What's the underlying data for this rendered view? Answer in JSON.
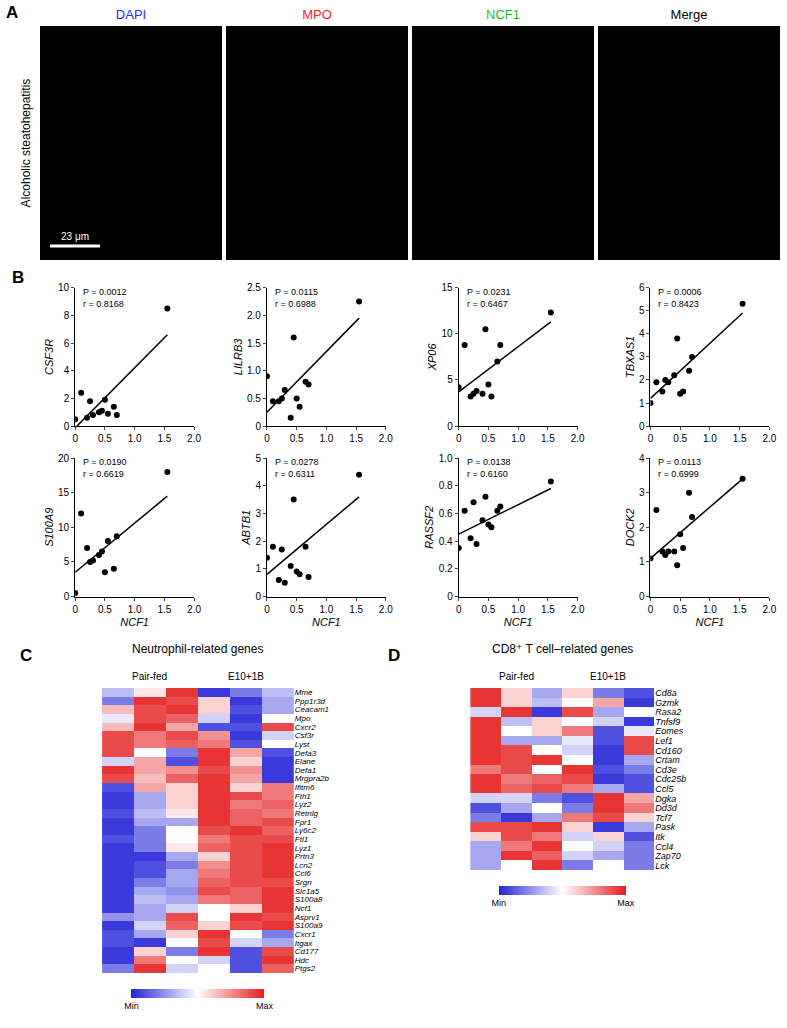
{
  "chart_data": [
    {
      "type": "image",
      "panel": "A",
      "row_label": "Alcoholic steatohepatitis",
      "scale_bar": "23 μm",
      "channels": [
        {
          "name": "DAPI",
          "color": "#2a2aff"
        },
        {
          "name": "MPO",
          "color": "#ff1a1a"
        },
        {
          "name": "NCF1",
          "color": "#1fb81f"
        },
        {
          "name": "Merge",
          "color": "#000000"
        }
      ]
    },
    {
      "type": "scatter",
      "panel": "B",
      "ylabel": "CSF3R",
      "color": "#000000",
      "x": [
        0,
        0.1,
        0.2,
        0.25,
        0.3,
        0.4,
        0.45,
        0.5,
        0.55,
        0.65,
        0.7,
        1.55
      ],
      "values": [
        0.5,
        2.4,
        0.6,
        1.8,
        0.8,
        1.0,
        1.1,
        1.9,
        0.9,
        1.4,
        0.8,
        8.5
      ],
      "fit": {
        "x": [
          0.03,
          1.55
        ],
        "y": [
          0,
          6.6
        ]
      },
      "xlim": [
        0,
        2
      ],
      "xticks": [
        0,
        0.5,
        {
          "value": 1,
          "label": "1.0"
        },
        1.5,
        {
          "value": 2,
          "label": "2.0"
        }
      ],
      "ylim": [
        0,
        10
      ],
      "yticks": [
        0,
        2,
        4,
        6,
        8,
        10
      ],
      "annotations": [
        "P = 0.0012",
        "r = 0.8168"
      ]
    },
    {
      "type": "scatter",
      "ylabel": "LILRB3",
      "color": "#000000",
      "x": [
        0,
        0.1,
        0.2,
        0.25,
        0.3,
        0.4,
        0.45,
        0.5,
        0.55,
        0.65,
        0.7,
        1.55
      ],
      "values": [
        0.9,
        0.45,
        0.45,
        0.5,
        0.65,
        0.15,
        1.6,
        0.5,
        0.35,
        0.8,
        0.75,
        2.25
      ],
      "fit": {
        "x": [
          0,
          1.55
        ],
        "y": [
          0.25,
          1.95
        ]
      },
      "xlim": [
        0,
        2
      ],
      "xticks": [
        0,
        0.5,
        {
          "value": 1,
          "label": "1.0"
        },
        1.5,
        {
          "value": 2,
          "label": "2.0"
        }
      ],
      "ylim": [
        0,
        2.5
      ],
      "yticks": [
        0,
        0.5,
        {
          "value": 1,
          "label": "1.0"
        },
        1.5,
        {
          "value": 2,
          "label": "2.0"
        },
        2.5
      ],
      "annotations": [
        "P = 0.0115",
        "r = 0.6988"
      ]
    },
    {
      "type": "scatter",
      "ylabel": "XP06",
      "color": "#000000",
      "x": [
        0,
        0.1,
        0.2,
        0.25,
        0.3,
        0.4,
        0.45,
        0.5,
        0.55,
        0.65,
        0.7,
        1.55
      ],
      "values": [
        4.2,
        8.8,
        3.2,
        3.5,
        3.8,
        3.5,
        10.5,
        4.5,
        3.2,
        7.0,
        8.8,
        12.3
      ],
      "fit": {
        "x": [
          0,
          1.55
        ],
        "y": [
          3.7,
          11.3
        ]
      },
      "xlim": [
        0,
        2
      ],
      "xticks": [
        0,
        0.5,
        {
          "value": 1,
          "label": "1.0"
        },
        1.5,
        {
          "value": 2,
          "label": "2.0"
        }
      ],
      "ylim": [
        0,
        15
      ],
      "yticks": [
        0,
        5,
        10,
        15
      ],
      "annotations": [
        "P = 0.0231",
        "r = 0.6467"
      ]
    },
    {
      "type": "scatter",
      "ylabel": "TBXAS1",
      "color": "#000000",
      "x": [
        0,
        0.1,
        0.2,
        0.25,
        0.3,
        0.4,
        0.45,
        0.5,
        0.55,
        0.65,
        0.7,
        1.55
      ],
      "values": [
        1.0,
        1.9,
        1.5,
        2.0,
        1.9,
        2.2,
        3.8,
        1.4,
        1.5,
        2.4,
        3.0,
        5.3
      ],
      "fit": {
        "x": [
          0,
          1.55
        ],
        "y": [
          1.2,
          4.9
        ]
      },
      "xlim": [
        0,
        2
      ],
      "xticks": [
        0,
        0.5,
        {
          "value": 1,
          "label": "1.0"
        },
        1.5,
        {
          "value": 2,
          "label": "2.0"
        }
      ],
      "ylim": [
        0,
        6
      ],
      "yticks": [
        0,
        1,
        2,
        3,
        4,
        5,
        6
      ],
      "annotations": [
        "P = 0.0006",
        "r = 0.8423"
      ]
    },
    {
      "type": "scatter",
      "ylabel": "S100A9",
      "xlabel": "NCF1",
      "color": "#000000",
      "x": [
        0,
        0.1,
        0.2,
        0.25,
        0.3,
        0.4,
        0.45,
        0.5,
        0.55,
        0.65,
        0.7,
        1.55
      ],
      "values": [
        0.5,
        12,
        7,
        5,
        5.2,
        6,
        6.5,
        3.5,
        8,
        4,
        8.7,
        18
      ],
      "fit": {
        "x": [
          0,
          1.55
        ],
        "y": [
          3.5,
          14.5
        ]
      },
      "xlim": [
        0,
        2
      ],
      "xticks": [
        0,
        0.5,
        {
          "value": 1,
          "label": "1.0"
        },
        1.5,
        {
          "value": 2,
          "label": "2.0"
        }
      ],
      "ylim": [
        0,
        20
      ],
      "yticks": [
        0,
        5,
        10,
        15,
        20
      ],
      "annotations": [
        "P = 0.0190",
        "r = 0.6619"
      ]
    },
    {
      "type": "scatter",
      "ylabel": "ABTB1",
      "xlabel": "NCF1",
      "color": "#000000",
      "x": [
        0,
        0.1,
        0.2,
        0.25,
        0.3,
        0.4,
        0.45,
        0.5,
        0.55,
        0.65,
        0.7,
        1.55
      ],
      "values": [
        1.4,
        1.8,
        0.6,
        1.7,
        0.5,
        1.1,
        3.5,
        0.9,
        0.8,
        1.8,
        0.7,
        4.4
      ],
      "fit": {
        "x": [
          0,
          1.55
        ],
        "y": [
          0.8,
          3.6
        ]
      },
      "xlim": [
        0,
        2
      ],
      "xticks": [
        0,
        0.5,
        {
          "value": 1,
          "label": "1.0"
        },
        1.5,
        {
          "value": 2,
          "label": "2.0"
        }
      ],
      "ylim": [
        0,
        5
      ],
      "yticks": [
        0,
        1,
        2,
        3,
        4,
        5
      ],
      "annotations": [
        "P = 0.0278",
        "r = 0.6311"
      ]
    },
    {
      "type": "scatter",
      "ylabel": "RASSF2",
      "xlabel": "NCF1",
      "color": "#000000",
      "x": [
        0,
        0.1,
        0.2,
        0.25,
        0.3,
        0.4,
        0.45,
        0.5,
        0.55,
        0.65,
        0.7,
        1.55
      ],
      "values": [
        0.35,
        0.62,
        0.42,
        0.68,
        0.38,
        0.55,
        0.72,
        0.52,
        0.5,
        0.62,
        0.65,
        0.83
      ],
      "fit": {
        "x": [
          0,
          1.55
        ],
        "y": [
          0.45,
          0.78
        ]
      },
      "xlim": [
        0,
        2
      ],
      "xticks": [
        0,
        0.5,
        {
          "value": 1,
          "label": "1.0"
        },
        1.5,
        {
          "value": 2,
          "label": "2.0"
        }
      ],
      "ylim": [
        0,
        1
      ],
      "yticks": [
        0,
        0.2,
        0.4,
        0.6,
        0.8,
        {
          "value": 1,
          "label": "1.0"
        }
      ],
      "annotations": [
        "P = 0.0138",
        "r = 0.6160"
      ]
    },
    {
      "type": "scatter",
      "ylabel": "DOCK2",
      "xlabel": "NCF1",
      "color": "#000000",
      "x": [
        0,
        0.1,
        0.2,
        0.25,
        0.3,
        0.4,
        0.45,
        0.5,
        0.55,
        0.65,
        0.7,
        1.55
      ],
      "values": [
        1.1,
        2.5,
        1.3,
        1.2,
        1.3,
        1.3,
        0.9,
        1.8,
        1.4,
        3.0,
        2.3,
        3.4
      ],
      "fit": {
        "x": [
          0,
          1.55
        ],
        "y": [
          1.1,
          3.4
        ]
      },
      "xlim": [
        0,
        2
      ],
      "xticks": [
        0,
        0.5,
        {
          "value": 1,
          "label": "1.0"
        },
        1.5,
        {
          "value": 2,
          "label": "2.0"
        }
      ],
      "ylim": [
        0,
        4
      ],
      "yticks": [
        0,
        1,
        2,
        3,
        4
      ],
      "annotations": [
        "P = 0.0113",
        "r = 0.6999"
      ]
    },
    {
      "type": "heatmap",
      "panel": "C",
      "title": "Neutrophil-related genes",
      "tick_labels": "y",
      "column_groups": [
        {
          "label": "Pair-fed",
          "columns": 3
        },
        {
          "label": "E10+1B",
          "columns": 3
        }
      ],
      "colors": [
        "#2424d8",
        "#ffffff",
        "#e41e1e"
      ],
      "zlim": [
        0,
        1
      ],
      "zticks": [
        {
          "value": 0,
          "label": "Min"
        },
        {
          "value": 1,
          "label": "Max"
        }
      ],
      "rows": [
        "Mme",
        "Ppp1r3d",
        "Ceacam1",
        "Mpo",
        "Cxcr2",
        "Csf3r",
        "Lyst",
        "Defa3",
        "Elane",
        "Defa1",
        "Mrgpra2b",
        "Ifitm6",
        "Fth1",
        "Lyz2",
        "Retnlg",
        "Fpr1",
        "Ly6c2",
        "Ftl1",
        "Lyz1",
        "Prtn3",
        "Lcn2",
        "Ccl6",
        "Srgn",
        "Slc1a5",
        "S100a8",
        "Ncf1",
        "Asprv1",
        "S100a9",
        "Cxcr1",
        "Itgax",
        "Cd177",
        "Hdc",
        "Ptgs2"
      ],
      "cells": [
        [
          0.35,
          0.55,
          0.95,
          0.05,
          0.2,
          0.35
        ],
        [
          0.2,
          0.95,
          0.9,
          0.6,
          0.05,
          0.3
        ],
        [
          0.65,
          0.9,
          0.95,
          0.6,
          0.1,
          0.3
        ],
        [
          0.45,
          0.9,
          0.85,
          0.4,
          0.05,
          0.5
        ],
        [
          0.65,
          0.95,
          0.7,
          0.1,
          0.1,
          0.9
        ],
        [
          0.9,
          0.8,
          0.9,
          0.75,
          0.05,
          0.4
        ],
        [
          0.9,
          0.8,
          0.85,
          0.8,
          0.1,
          0.5
        ],
        [
          0.9,
          0.5,
          0.2,
          0.95,
          0.7,
          0.1
        ],
        [
          0.4,
          0.7,
          0.1,
          0.95,
          0.6,
          0.05
        ],
        [
          0.95,
          0.7,
          0.75,
          0.9,
          0.75,
          0.05
        ],
        [
          0.9,
          0.65,
          0.85,
          0.95,
          0.7,
          0.05
        ],
        [
          0.1,
          0.7,
          0.6,
          0.95,
          0.6,
          0.8
        ],
        [
          0.05,
          0.3,
          0.6,
          0.95,
          0.9,
          0.8
        ],
        [
          0.05,
          0.3,
          0.6,
          0.95,
          0.8,
          0.85
        ],
        [
          0.1,
          0.35,
          0.55,
          0.95,
          0.85,
          0.8
        ],
        [
          0.05,
          0.3,
          0.3,
          0.95,
          0.85,
          0.9
        ],
        [
          0.05,
          0.2,
          0.5,
          0.9,
          0.95,
          0.85
        ],
        [
          0.1,
          0.2,
          0.5,
          0.8,
          0.9,
          0.9
        ],
        [
          0.05,
          0.2,
          0.55,
          0.85,
          0.9,
          0.95
        ],
        [
          0.05,
          0.05,
          0.3,
          0.6,
          0.9,
          0.95
        ],
        [
          0.05,
          0.1,
          0.2,
          0.75,
          0.9,
          0.95
        ],
        [
          0.05,
          0.1,
          0.3,
          0.8,
          0.9,
          0.95
        ],
        [
          0.05,
          0.2,
          0.3,
          0.85,
          0.9,
          0.9
        ],
        [
          0.05,
          0.3,
          0.25,
          0.9,
          0.85,
          0.95
        ],
        [
          0.05,
          0.35,
          0.3,
          0.8,
          0.85,
          0.95
        ],
        [
          0.05,
          0.3,
          0.4,
          0.5,
          0.6,
          0.95
        ],
        [
          0.25,
          0.3,
          0.9,
          0.5,
          0.95,
          0.9
        ],
        [
          0.05,
          0.4,
          0.85,
          0.6,
          0.9,
          0.95
        ],
        [
          0.1,
          0.3,
          0.6,
          0.95,
          0.5,
          0.2
        ],
        [
          0.1,
          0.05,
          0.5,
          0.9,
          0.4,
          0.3
        ],
        [
          0.05,
          0.6,
          0.2,
          0.95,
          0.1,
          0.9
        ],
        [
          0.05,
          0.8,
          0.5,
          0.4,
          0.1,
          0.95
        ],
        [
          0.2,
          0.95,
          0.4,
          0.5,
          0.1,
          0.85
        ]
      ]
    },
    {
      "type": "heatmap",
      "panel": "D",
      "title": "CD8⁺ T cell–related genes",
      "tick_labels": "y",
      "column_groups": [
        {
          "label": "Pair-fed",
          "columns": 3
        },
        {
          "label": "E10+1B",
          "columns": 3
        }
      ],
      "colors": [
        "#2424d8",
        "#ffffff",
        "#e41e1e"
      ],
      "zlim": [
        0,
        1
      ],
      "zticks": [
        {
          "value": 0,
          "label": "Min"
        },
        {
          "value": 1,
          "label": "Max"
        }
      ],
      "rows": [
        "Cd8a",
        "Gzmk",
        "Rasa2",
        "Tnfsf9",
        "Eomes",
        "Lef1",
        "Cd160",
        "Crtam",
        "Cd3e",
        "Cdc25b",
        "Ccl5",
        "Dgka",
        "Dd3d",
        "Tcf7",
        "Pask",
        "Itk",
        "Ccl4",
        "Zap70",
        "Lck"
      ],
      "cells": [
        [
          0.95,
          0.6,
          0.3,
          0.6,
          0.2,
          0.1
        ],
        [
          0.95,
          0.6,
          0.35,
          0.5,
          0.7,
          0.05
        ],
        [
          0.4,
          0.95,
          0.05,
          0.9,
          0.3,
          0.5
        ],
        [
          0.95,
          0.35,
          0.6,
          0.5,
          0.4,
          0.05
        ],
        [
          0.95,
          0.5,
          0.6,
          0.8,
          0.1,
          0.45
        ],
        [
          0.95,
          0.3,
          0.3,
          0.45,
          0.1,
          0.9
        ],
        [
          0.95,
          0.9,
          0.5,
          0.4,
          0.05,
          0.9
        ],
        [
          0.95,
          0.9,
          0.95,
          0.5,
          0.05,
          0.3
        ],
        [
          0.8,
          0.9,
          0.5,
          0.95,
          0.1,
          0.2
        ],
        [
          0.95,
          0.8,
          0.85,
          0.9,
          0.05,
          0.1
        ],
        [
          0.95,
          0.85,
          0.9,
          0.8,
          0.3,
          0.1
        ],
        [
          0.4,
          0.4,
          0.2,
          0.1,
          0.95,
          0.7
        ],
        [
          0.1,
          0.3,
          0.5,
          0.2,
          0.95,
          0.8
        ],
        [
          0.2,
          0.05,
          0.3,
          0.8,
          0.9,
          0.6
        ],
        [
          0.9,
          0.9,
          0.95,
          0.6,
          0.05,
          0.3
        ],
        [
          0.6,
          0.9,
          0.8,
          0.4,
          0.6,
          0.1
        ],
        [
          0.3,
          0.8,
          0.95,
          0.5,
          0.4,
          0.2
        ],
        [
          0.3,
          0.95,
          0.85,
          0.4,
          0.3,
          0.2
        ],
        [
          0.3,
          0.5,
          0.95,
          0.2,
          0.5,
          0.2
        ]
      ]
    }
  ]
}
